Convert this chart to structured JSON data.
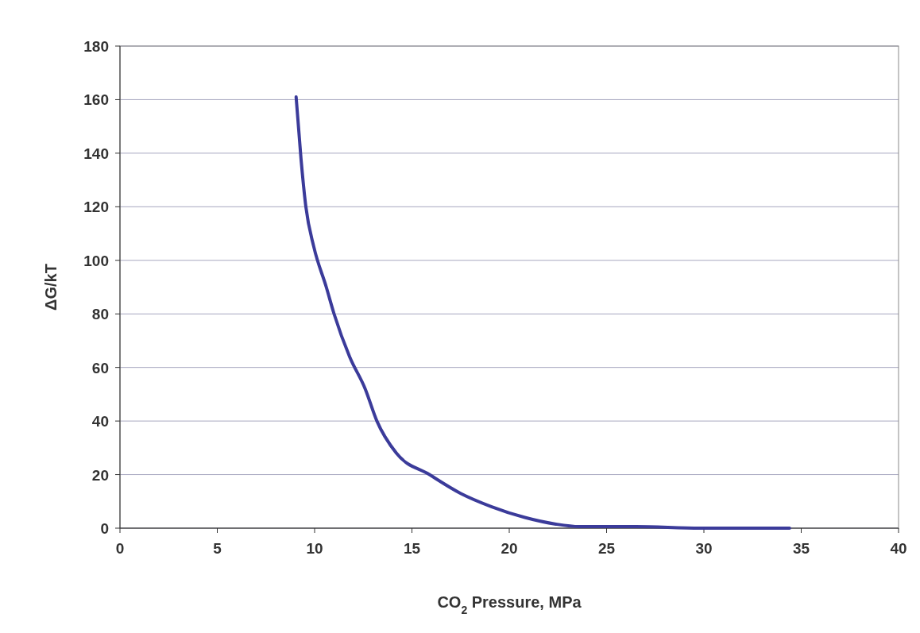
{
  "chart_data": {
    "type": "line",
    "xlabel": "CO$_{2}$ Pressure, MPa",
    "ylabel": "ΔG/kT",
    "xlim": [
      0,
      40
    ],
    "xticks": [
      0,
      5,
      10,
      15,
      20,
      25,
      30,
      35,
      40
    ],
    "ylim": [
      0,
      180
    ],
    "yticks": [
      0,
      20,
      40,
      60,
      80,
      100,
      120,
      140,
      160,
      180
    ],
    "grid": "y",
    "marker": "none",
    "line_style": "solid",
    "series": [
      {
        "color": "#3b3b9a",
        "x": [
          9.05,
          9.3,
          9.55,
          9.96,
          10.6,
          11.0,
          11.8,
          12.6,
          13.2,
          14.2,
          15.9,
          17.5,
          19.1,
          20.8,
          22.4,
          23.6,
          26.5,
          29.8,
          34.4
        ],
        "values": [
          161,
          138,
          120,
          105,
          90,
          80,
          64,
          52,
          40,
          28,
          20,
          13,
          8,
          4,
          1.5,
          0.6,
          0.6,
          0,
          0
        ]
      }
    ]
  }
}
